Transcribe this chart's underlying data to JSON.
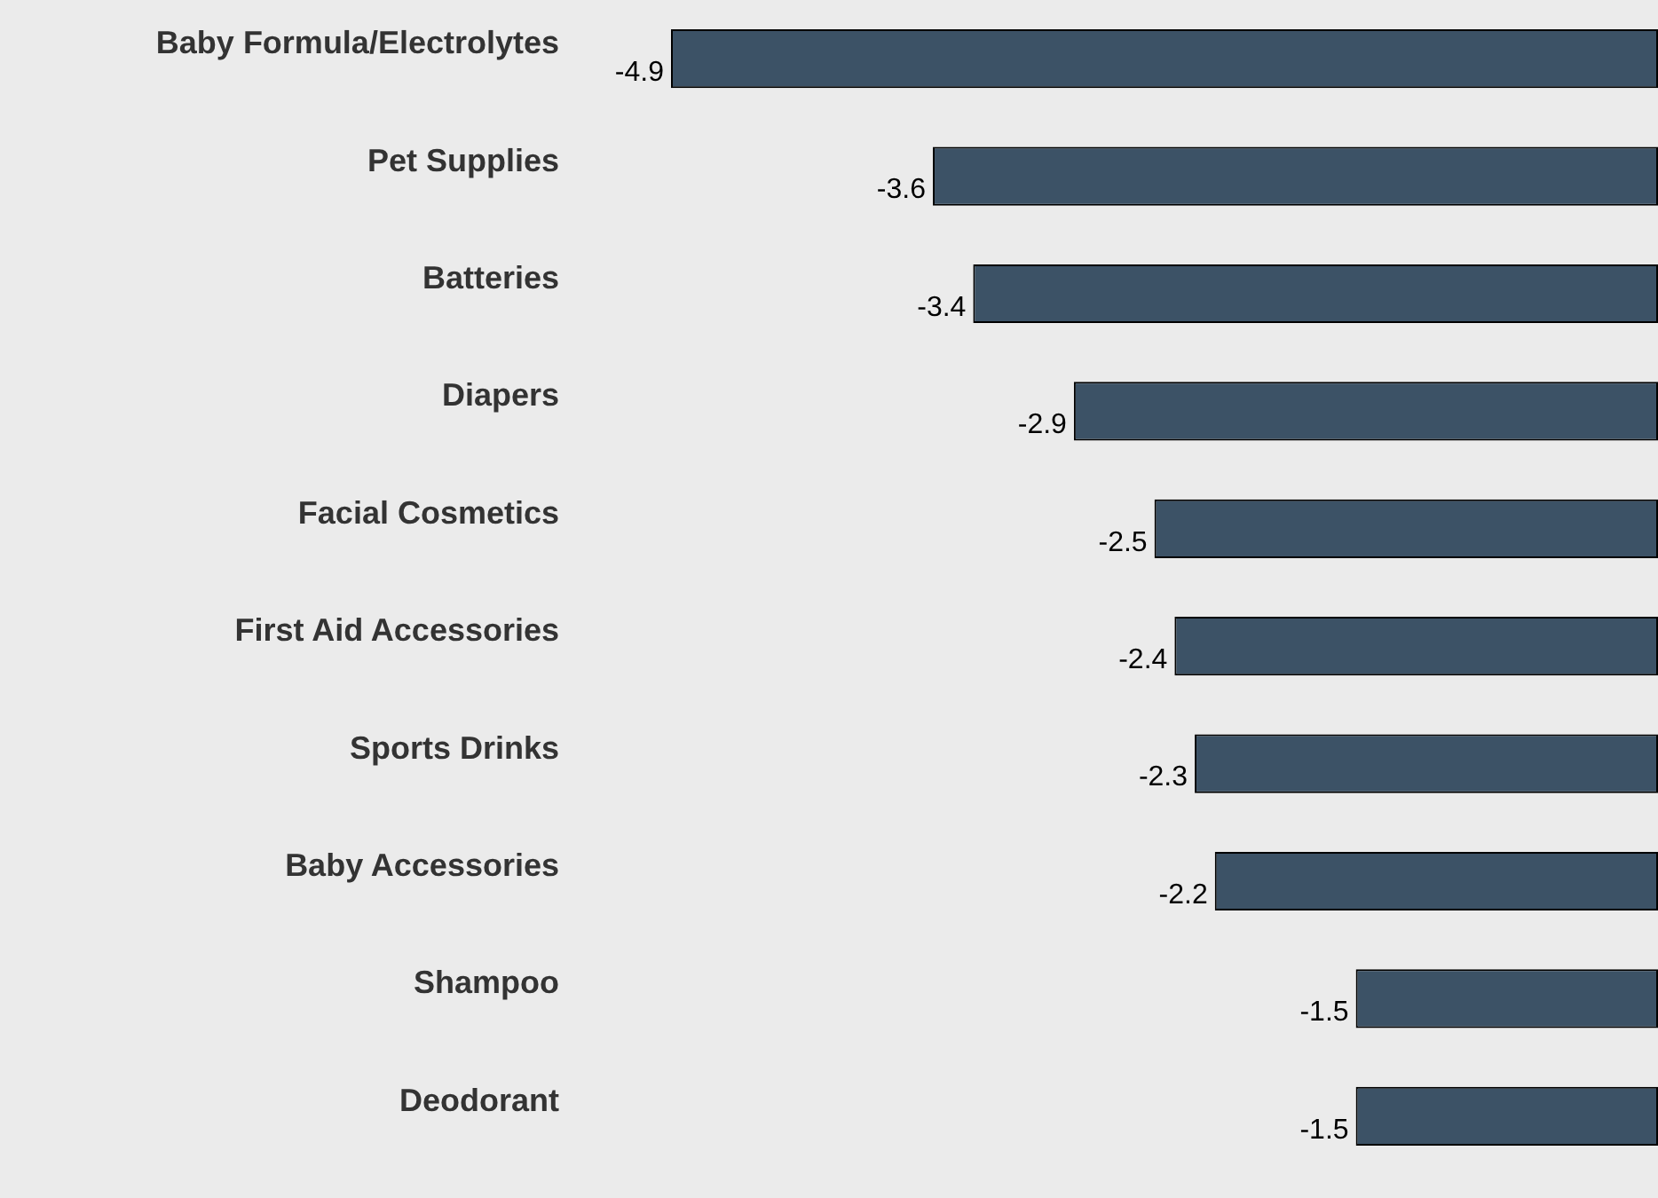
{
  "chart_data": {
    "type": "bar",
    "orientation": "horizontal",
    "categories": [
      "Baby Formula/Electrolytes",
      "Pet Supplies",
      "Batteries",
      "Diapers",
      "Facial Cosmetics",
      "First Aid Accessories",
      "Sports Drinks",
      "Baby Accessories",
      "Shampoo",
      "Deodorant"
    ],
    "values": [
      -4.9,
      -3.6,
      -3.4,
      -2.9,
      -2.5,
      -2.4,
      -2.3,
      -2.2,
      -1.5,
      -1.5
    ],
    "color": "#3c5266",
    "xlim": [
      -4.9,
      0
    ],
    "tick_labels": "y",
    "data_labels": true
  }
}
